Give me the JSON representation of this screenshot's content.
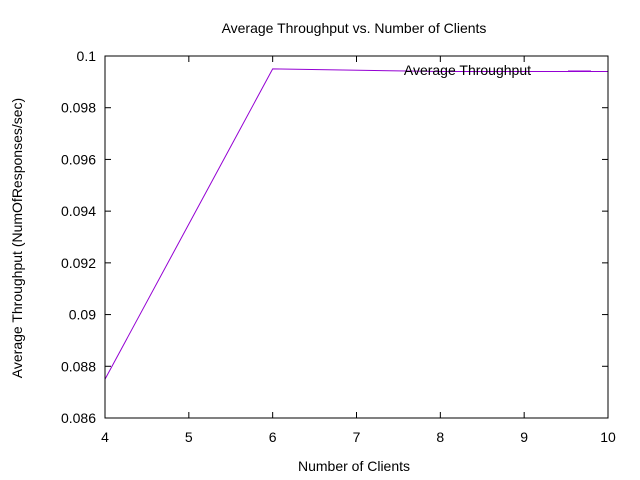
{
  "chart_data": {
    "type": "line",
    "title": "Average Throughput vs. Number of Clients",
    "xlabel": "Number of Clients",
    "ylabel": "Average Throughput (NumOfResponses/sec)",
    "xlim": [
      4,
      10
    ],
    "ylim": [
      0.086,
      0.1
    ],
    "x_ticks": [
      4,
      5,
      6,
      7,
      8,
      9,
      10
    ],
    "x_tick_labels": [
      "4",
      "5",
      "6",
      "7",
      "8",
      "9",
      "10"
    ],
    "y_ticks": [
      0.086,
      0.088,
      0.09,
      0.092,
      0.094,
      0.096,
      0.098,
      0.1
    ],
    "y_tick_labels": [
      "0.086",
      "0.088",
      "0.09",
      "0.092",
      "0.094",
      "0.096",
      "0.098",
      "0.1"
    ],
    "grid": false,
    "legend_position": "top-right",
    "series": [
      {
        "name": "Average Throughput",
        "color": "#9400d3",
        "x": [
          4,
          6,
          8,
          10
        ],
        "y": [
          0.0875,
          0.0995,
          0.0994,
          0.0994
        ]
      }
    ]
  }
}
